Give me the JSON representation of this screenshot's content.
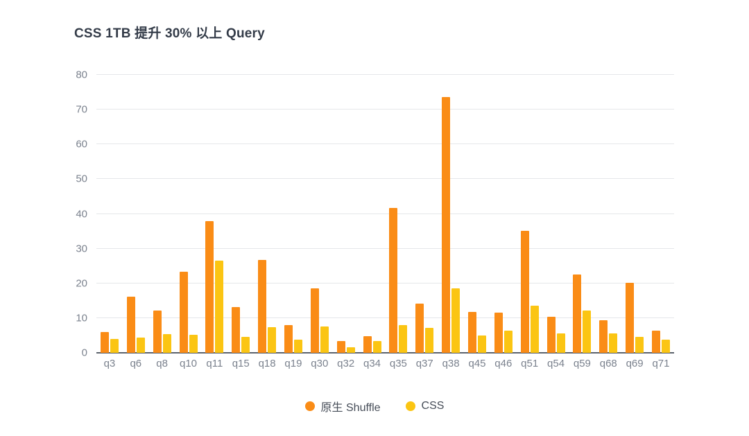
{
  "title": "CSS 1TB 提升 30% 以上 Query",
  "colors": {
    "background": "#FFFFFF",
    "title_text": "#333B48",
    "axis_text": "#7B828E",
    "legend_text": "#454C57",
    "grid_line": "#E5E7EA",
    "axis_line": "#5A616B",
    "series_orange": "#FA8C16",
    "series_yellow": "#FBC513"
  },
  "legend": {
    "items": [
      {
        "label": "原生 Shuffle",
        "color": "#FA8C16"
      },
      {
        "label": "CSS",
        "color": "#FBC513"
      }
    ]
  },
  "chart_data": {
    "type": "bar",
    "title": "CSS 1TB 提升 30% 以上 Query",
    "categories": [
      "q3",
      "q6",
      "q8",
      "q10",
      "q11",
      "q15",
      "q18",
      "q19",
      "q30",
      "q32",
      "q34",
      "q35",
      "q37",
      "q38",
      "q45",
      "q46",
      "q51",
      "q54",
      "q59",
      "q68",
      "q69",
      "q71"
    ],
    "series": [
      {
        "name": "原生 Shuffle",
        "color": "#FA8C16",
        "values": [
          6.0,
          16.1,
          12.2,
          23.3,
          38.0,
          13.1,
          26.8,
          8.0,
          18.6,
          3.3,
          4.8,
          41.6,
          14.2,
          73.7,
          11.8,
          11.5,
          35.2,
          10.3,
          22.5,
          9.4,
          20.1,
          6.3
        ]
      },
      {
        "name": "CSS",
        "color": "#FBC513",
        "values": [
          4.0,
          4.3,
          5.4,
          5.2,
          26.5,
          4.5,
          7.4,
          3.7,
          7.6,
          1.6,
          3.4,
          7.9,
          7.1,
          18.5,
          5.0,
          6.4,
          13.6,
          5.6,
          12.2,
          5.6,
          4.6,
          3.7
        ]
      }
    ],
    "xlabel": "",
    "ylabel": "",
    "ylim": [
      0,
      80
    ],
    "yticks": [
      0,
      10,
      20,
      30,
      40,
      50,
      60,
      70,
      80
    ],
    "grid": true,
    "legend_position": "bottom"
  }
}
